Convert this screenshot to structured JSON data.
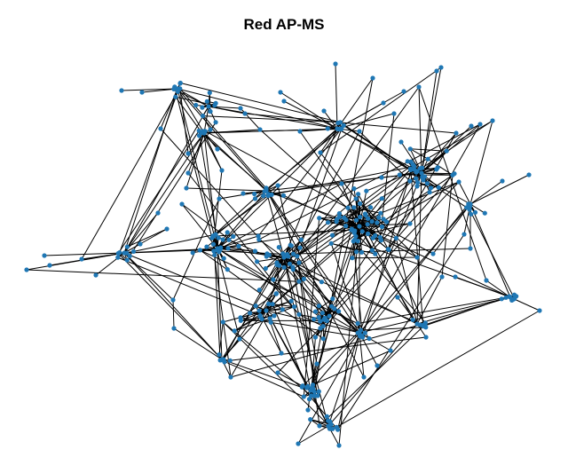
{
  "figure": {
    "title": "Red AP-MS"
  },
  "style": {
    "node_color": "#1f77b4",
    "edge_color": "#000000",
    "background": "#ffffff"
  }
}
